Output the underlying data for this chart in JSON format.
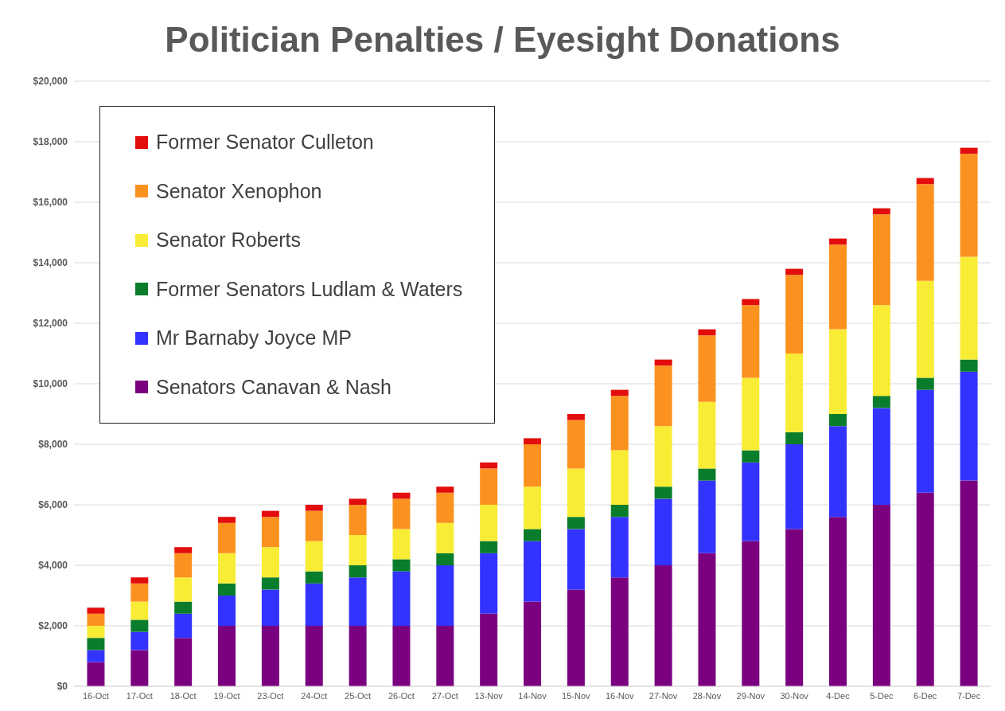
{
  "chart_data": {
    "type": "bar",
    "title": "Politician Penalties / Eyesight Donations",
    "stacked": true,
    "grid": "y",
    "legend": "top left",
    "categories": [
      "16-Oct",
      "17-Oct",
      "18-Oct",
      "19-Oct",
      "23-Oct",
      "24-Oct",
      "25-Oct",
      "26-Oct",
      "27-Oct",
      "13-Nov",
      "14-Nov",
      "15-Nov",
      "16-Nov",
      "27-Nov",
      "28-Nov",
      "29-Nov",
      "30-Nov",
      "4-Dec",
      "5-Dec",
      "6-Dec",
      "7-Dec"
    ],
    "ylim": [
      0,
      20000
    ],
    "yticks": [
      {
        "value": 0,
        "label": "$0"
      },
      {
        "value": 2000,
        "label": "$2,000"
      },
      {
        "value": 4000,
        "label": "$4,000"
      },
      {
        "value": 6000,
        "label": "$6,000"
      },
      {
        "value": 8000,
        "label": "$8,000"
      },
      {
        "value": 10000,
        "label": "$10,000"
      },
      {
        "value": 12000,
        "label": "$12,000"
      },
      {
        "value": 14000,
        "label": "$14,000"
      },
      {
        "value": 16000,
        "label": "$16,000"
      },
      {
        "value": 18000,
        "label": "$18,000"
      },
      {
        "value": 20000,
        "label": "$20,000"
      }
    ],
    "series": [
      {
        "name": "Senators Canavan & Nash",
        "color": "#7a0080",
        "values": [
          800,
          1200,
          1600,
          2000,
          2000,
          2000,
          2000,
          2000,
          2000,
          2400,
          2800,
          3200,
          3600,
          4000,
          4400,
          4800,
          5200,
          5600,
          6000,
          6400,
          6800
        ]
      },
      {
        "name": "Mr Barnaby Joyce MP",
        "color": "#3333ff",
        "values": [
          400,
          600,
          800,
          1000,
          1200,
          1400,
          1600,
          1800,
          2000,
          2000,
          2000,
          2000,
          2000,
          2200,
          2400,
          2600,
          2800,
          3000,
          3200,
          3400,
          3600
        ]
      },
      {
        "name": "Former Senators Ludlam & Waters",
        "color": "#0a7d2c",
        "values": [
          400,
          400,
          400,
          400,
          400,
          400,
          400,
          400,
          400,
          400,
          400,
          400,
          400,
          400,
          400,
          400,
          400,
          400,
          400,
          400,
          400
        ]
      },
      {
        "name": "Senator Roberts",
        "color": "#f8ec35",
        "values": [
          400,
          600,
          800,
          1000,
          1000,
          1000,
          1000,
          1000,
          1000,
          1200,
          1400,
          1600,
          1800,
          2000,
          2200,
          2400,
          2600,
          2800,
          3000,
          3200,
          3400
        ]
      },
      {
        "name": "Senator Xenophon",
        "color": "#fb9220",
        "values": [
          400,
          600,
          800,
          1000,
          1000,
          1000,
          1000,
          1000,
          1000,
          1200,
          1400,
          1600,
          1800,
          2000,
          2200,
          2400,
          2600,
          2800,
          3000,
          3200,
          3400
        ]
      },
      {
        "name": "Former Senator Culleton",
        "color": "#e30d0d",
        "values": [
          200,
          200,
          200,
          200,
          200,
          200,
          200,
          200,
          200,
          200,
          200,
          200,
          200,
          200,
          200,
          200,
          200,
          200,
          200,
          200,
          200
        ]
      }
    ]
  }
}
